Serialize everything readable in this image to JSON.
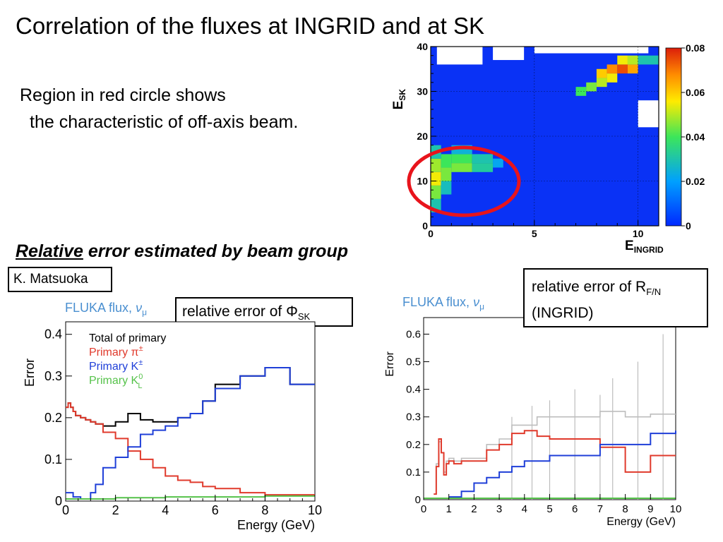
{
  "slide": {
    "title": "Correlation of the fluxes at INGRID and at SK",
    "region_line1": "Region in red circle shows",
    "region_line2": "the characteristic of off-axis beam.",
    "rel_heading_underlined": "Relative",
    "rel_heading_rest": " error estimated by beam group",
    "author": "K. Matsuoka"
  },
  "colors": {
    "red": "#e03a2c",
    "blue": "#1f3fd8",
    "green": "#55c24a",
    "black": "#000000",
    "gray": "#bdbdbd",
    "fluka": "#4a8fd0",
    "circle": "#e8141c"
  },
  "chart_data": [
    {
      "type": "heatmap",
      "xlabel_main": "E",
      "xlabel_sub": "INGRID",
      "ylabel_main": "E",
      "ylabel_sub": "SK",
      "xlim": [
        0,
        11
      ],
      "ylim": [
        0,
        40
      ],
      "x_ticks": [
        0,
        5,
        10
      ],
      "y_ticks": [
        0,
        10,
        20,
        30,
        40
      ],
      "colorbar_range": [
        0,
        0.08
      ],
      "colorbar_ticks": [
        "0",
        "0.02",
        "0.04",
        "0.06",
        "0.08"
      ],
      "annotation": "red circle around E_INGRID 0–4, E_SK 5–20",
      "cells": [
        {
          "x0": 0,
          "x1": 0.5,
          "y0": 6,
          "y1": 9,
          "v": 0.045
        },
        {
          "x0": 0,
          "x1": 0.5,
          "y0": 9,
          "y1": 12,
          "v": 0.055
        },
        {
          "x0": 0,
          "x1": 0.5,
          "y0": 12,
          "y1": 15,
          "v": 0.048
        },
        {
          "x0": 0,
          "x1": 0.5,
          "y0": 3,
          "y1": 6,
          "v": 0.03
        },
        {
          "x0": 0,
          "x1": 0.5,
          "y0": 15,
          "y1": 18,
          "v": 0.03
        },
        {
          "x0": 0.5,
          "x1": 1,
          "y0": 10,
          "y1": 13,
          "v": 0.045
        },
        {
          "x0": 0.5,
          "x1": 1,
          "y0": 13,
          "y1": 16,
          "v": 0.04
        },
        {
          "x0": 0.5,
          "x1": 1,
          "y0": 7,
          "y1": 10,
          "v": 0.028
        },
        {
          "x0": 1,
          "x1": 2,
          "y0": 12,
          "y1": 14,
          "v": 0.045
        },
        {
          "x0": 1,
          "x1": 2,
          "y0": 14,
          "y1": 16,
          "v": 0.04
        },
        {
          "x0": 1,
          "x1": 2,
          "y0": 16,
          "y1": 18,
          "v": 0.025
        },
        {
          "x0": 2,
          "x1": 3,
          "y0": 12,
          "y1": 14,
          "v": 0.032
        },
        {
          "x0": 2,
          "x1": 3,
          "y0": 14,
          "y1": 16,
          "v": 0.03
        },
        {
          "x0": 3,
          "x1": 3.5,
          "y0": 13,
          "y1": 15,
          "v": 0.022
        },
        {
          "x0": 7,
          "x1": 7.5,
          "y0": 29,
          "y1": 31,
          "v": 0.04
        },
        {
          "x0": 7.5,
          "x1": 8,
          "y0": 30,
          "y1": 32,
          "v": 0.045
        },
        {
          "x0": 8,
          "x1": 8.5,
          "y0": 31,
          "y1": 33,
          "v": 0.05
        },
        {
          "x0": 8,
          "x1": 8.5,
          "y0": 33,
          "y1": 35,
          "v": 0.06
        },
        {
          "x0": 8.5,
          "x1": 9,
          "y0": 32,
          "y1": 34,
          "v": 0.055
        },
        {
          "x0": 8.5,
          "x1": 9,
          "y0": 34,
          "y1": 36,
          "v": 0.068
        },
        {
          "x0": 9,
          "x1": 9.5,
          "y0": 34,
          "y1": 36,
          "v": 0.075
        },
        {
          "x0": 9,
          "x1": 9.5,
          "y0": 36,
          "y1": 38,
          "v": 0.055
        },
        {
          "x0": 9.5,
          "x1": 10,
          "y0": 34,
          "y1": 36,
          "v": 0.065
        },
        {
          "x0": 9.5,
          "x1": 10,
          "y0": 36,
          "y1": 38,
          "v": 0.05
        },
        {
          "x0": 10,
          "x1": 11,
          "y0": 36,
          "y1": 38,
          "v": 0.03
        }
      ],
      "white_cells": [
        {
          "x0": 0.3,
          "x1": 2.5,
          "y0": 36,
          "y1": 40
        },
        {
          "x0": 3,
          "x1": 4.5,
          "y0": 37,
          "y1": 40
        },
        {
          "x0": 5,
          "x1": 10.5,
          "y0": 38.5,
          "y1": 40
        },
        {
          "x0": 10,
          "x1": 11,
          "y0": 22,
          "y1": 28
        }
      ]
    },
    {
      "type": "line",
      "fluka_label": "FLUKA flux,",
      "nu_label": "ν",
      "nu_sub": "μ",
      "callout_prefix": "relative error of ",
      "callout_symbol": "Φ",
      "callout_sub": "SK",
      "xlabel": "Energy (GeV)",
      "ylabel": "Error",
      "xlim": [
        0,
        10
      ],
      "ylim": [
        0,
        0.43
      ],
      "x_ticks": [
        0,
        2,
        4,
        6,
        8,
        10
      ],
      "y_ticks": [
        0,
        0.1,
        0.2,
        0.3,
        0.4
      ],
      "legend": [
        {
          "label": "Total of primary",
          "sup": "",
          "sub": "",
          "color": "black"
        },
        {
          "label": "Primary π",
          "sup": "±",
          "sub": "",
          "color": "red"
        },
        {
          "label": "Primary K",
          "sup": "±",
          "sub": "",
          "color": "blue"
        },
        {
          "label": "Primary K",
          "sup": "0",
          "sub": "L",
          "color": "green"
        }
      ],
      "series": [
        {
          "name": "Total of primary",
          "color": "black",
          "points": [
            [
              0,
              0.225
            ],
            [
              0.1,
              0.235
            ],
            [
              0.2,
              0.225
            ],
            [
              0.3,
              0.215
            ],
            [
              0.4,
              0.205
            ],
            [
              0.6,
              0.2
            ],
            [
              0.8,
              0.195
            ],
            [
              1.0,
              0.19
            ],
            [
              1.2,
              0.185
            ],
            [
              1.5,
              0.18
            ],
            [
              2.0,
              0.19
            ],
            [
              2.5,
              0.21
            ],
            [
              3.0,
              0.195
            ],
            [
              3.5,
              0.19
            ],
            [
              4.0,
              0.19
            ],
            [
              4.5,
              0.2
            ],
            [
              5.0,
              0.21
            ],
            [
              5.5,
              0.24
            ],
            [
              6.0,
              0.28
            ],
            [
              7.0,
              0.3
            ],
            [
              8.0,
              0.32
            ],
            [
              9.0,
              0.28
            ],
            [
              10.0,
              0.28
            ]
          ]
        },
        {
          "name": "Primary π±",
          "color": "red",
          "points": [
            [
              0,
              0.225
            ],
            [
              0.1,
              0.235
            ],
            [
              0.2,
              0.225
            ],
            [
              0.3,
              0.215
            ],
            [
              0.4,
              0.205
            ],
            [
              0.6,
              0.2
            ],
            [
              0.8,
              0.195
            ],
            [
              1.0,
              0.19
            ],
            [
              1.2,
              0.185
            ],
            [
              1.5,
              0.165
            ],
            [
              2.0,
              0.15
            ],
            [
              2.5,
              0.12
            ],
            [
              3.0,
              0.1
            ],
            [
              3.5,
              0.08
            ],
            [
              4.0,
              0.06
            ],
            [
              4.5,
              0.05
            ],
            [
              5.0,
              0.045
            ],
            [
              5.5,
              0.035
            ],
            [
              6.0,
              0.03
            ],
            [
              7.0,
              0.02
            ],
            [
              8.0,
              0.015
            ],
            [
              9.0,
              0.015
            ],
            [
              10.0,
              0.015
            ]
          ]
        },
        {
          "name": "Primary K±",
          "color": "blue",
          "points": [
            [
              0,
              0.02
            ],
            [
              0.3,
              0.01
            ],
            [
              0.6,
              0.005
            ],
            [
              0.8,
              0.005
            ],
            [
              1.0,
              0.02
            ],
            [
              1.2,
              0.04
            ],
            [
              1.5,
              0.08
            ],
            [
              2.0,
              0.105
            ],
            [
              2.5,
              0.13
            ],
            [
              3.0,
              0.16
            ],
            [
              3.5,
              0.17
            ],
            [
              4.0,
              0.18
            ],
            [
              4.5,
              0.2
            ],
            [
              5.0,
              0.21
            ],
            [
              5.5,
              0.24
            ],
            [
              6.0,
              0.27
            ],
            [
              7.0,
              0.3
            ],
            [
              8.0,
              0.32
            ],
            [
              9.0,
              0.28
            ],
            [
              10.0,
              0.28
            ]
          ]
        },
        {
          "name": "Primary K0L",
          "color": "green",
          "points": [
            [
              0,
              0.005
            ],
            [
              2,
              0.008
            ],
            [
              4,
              0.01
            ],
            [
              6,
              0.01
            ],
            [
              8,
              0.012
            ],
            [
              10,
              0.012
            ]
          ]
        }
      ]
    },
    {
      "type": "line",
      "fluka_label": "FLUKA flux,",
      "nu_label": "ν",
      "nu_sub": "μ",
      "callout_line1": "relative error of R",
      "callout_sub": "F/N",
      "callout_line2": "(INGRID)",
      "xlabel": "Energy (GeV)",
      "ylabel": "Error",
      "xlim": [
        0,
        10
      ],
      "ylim": [
        0,
        0.66
      ],
      "x_ticks": [
        0,
        1,
        2,
        3,
        4,
        5,
        6,
        7,
        8,
        9,
        10
      ],
      "y_ticks": [
        0,
        0.1,
        0.2,
        0.3,
        0.4,
        0.5,
        0.6
      ],
      "y_tick_labels": [
        "0",
        "0.1",
        "0.2",
        "0.3",
        "0.4",
        "0.5",
        "0.6"
      ],
      "series": [
        {
          "color": "gray",
          "points": [
            [
              0.4,
              0.02
            ],
            [
              0.5,
              0.13
            ],
            [
              0.6,
              0.21
            ],
            [
              0.7,
              0.17
            ],
            [
              0.8,
              0.1
            ],
            [
              0.9,
              0.14
            ],
            [
              1.0,
              0.15
            ],
            [
              1.2,
              0.14
            ],
            [
              1.5,
              0.15
            ],
            [
              2.0,
              0.15
            ],
            [
              2.5,
              0.2
            ],
            [
              3.0,
              0.22
            ],
            [
              3.5,
              0.27
            ],
            [
              4.0,
              0.27
            ],
            [
              4.5,
              0.3
            ],
            [
              5.0,
              0.3
            ],
            [
              6.0,
              0.3
            ],
            [
              7.0,
              0.32
            ],
            [
              8.0,
              0.3
            ],
            [
              9.0,
              0.31
            ],
            [
              10.0,
              0.31
            ]
          ]
        },
        {
          "color": "red",
          "points": [
            [
              0.4,
              0.02
            ],
            [
              0.5,
              0.12
            ],
            [
              0.6,
              0.22
            ],
            [
              0.7,
              0.17
            ],
            [
              0.8,
              0.09
            ],
            [
              0.9,
              0.13
            ],
            [
              1.0,
              0.14
            ],
            [
              1.2,
              0.13
            ],
            [
              1.5,
              0.14
            ],
            [
              2.0,
              0.14
            ],
            [
              2.5,
              0.18
            ],
            [
              3.0,
              0.2
            ],
            [
              3.5,
              0.24
            ],
            [
              4.0,
              0.25
            ],
            [
              4.5,
              0.23
            ],
            [
              5.0,
              0.22
            ],
            [
              6.0,
              0.22
            ],
            [
              7.0,
              0.19
            ],
            [
              8.0,
              0.1
            ],
            [
              9.0,
              0.16
            ],
            [
              10.0,
              0.16
            ]
          ]
        },
        {
          "color": "blue",
          "points": [
            [
              1.0,
              0.01
            ],
            [
              1.5,
              0.03
            ],
            [
              2.0,
              0.06
            ],
            [
              2.5,
              0.08
            ],
            [
              3.0,
              0.1
            ],
            [
              3.5,
              0.12
            ],
            [
              4.0,
              0.14
            ],
            [
              5.0,
              0.16
            ],
            [
              6.0,
              0.16
            ],
            [
              7.0,
              0.2
            ],
            [
              8.0,
              0.2
            ],
            [
              9.0,
              0.24
            ],
            [
              10.0,
              0.25
            ]
          ]
        },
        {
          "color": "green",
          "points": [
            [
              0,
              0.005
            ],
            [
              5,
              0.005
            ],
            [
              10,
              0.005
            ]
          ]
        }
      ]
    }
  ]
}
